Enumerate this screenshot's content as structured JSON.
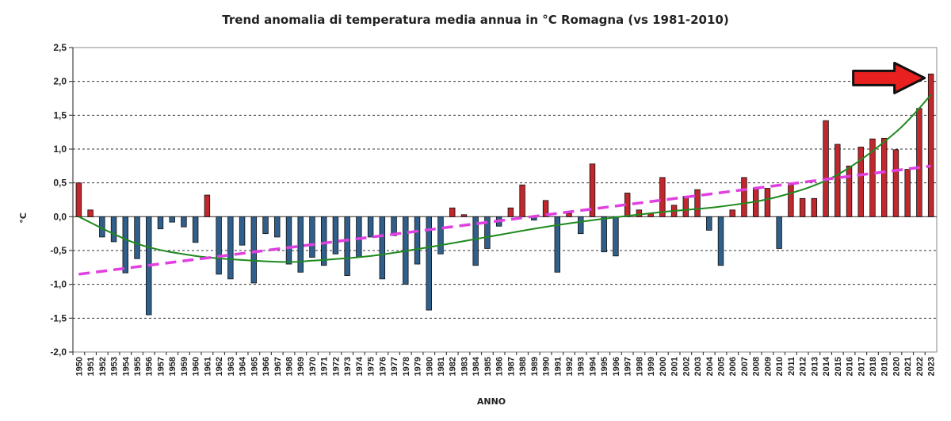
{
  "chart_data": {
    "type": "bar",
    "title": "Trend anomalia di temperatura media annua in °C Romagna (vs 1981-2010)",
    "xlabel": "ANNO",
    "ylabel": "°C",
    "ylim": [
      -2.0,
      2.5
    ],
    "yticks": [
      "2,5",
      "2,0",
      "1,5",
      "1,0",
      "0,5",
      "0,0",
      "-0,5",
      "-1,0",
      "-1,5",
      "-2,0"
    ],
    "grid": true,
    "legend": "none",
    "colors": {
      "positive": "#c0282d",
      "negative": "#2f5f8a",
      "linear_trend": "#e040e0",
      "poly_trend": "#1e8a1e",
      "arrow": "#e82020"
    },
    "categories": [
      "1950",
      "1951",
      "1952",
      "1953",
      "1954",
      "1955",
      "1956",
      "1957",
      "1958",
      "1959",
      "1960",
      "1961",
      "1962",
      "1963",
      "1964",
      "1965",
      "1966",
      "1967",
      "1968",
      "1969",
      "1970",
      "1971",
      "1972",
      "1973",
      "1974",
      "1975",
      "1976",
      "1977",
      "1978",
      "1979",
      "1980",
      "1981",
      "1982",
      "1983",
      "1984",
      "1985",
      "1986",
      "1987",
      "1988",
      "1989",
      "1990",
      "1991",
      "1992",
      "1993",
      "1994",
      "1995",
      "1996",
      "1997",
      "1998",
      "1999",
      "2000",
      "2001",
      "2002",
      "2003",
      "2004",
      "2005",
      "2006",
      "2007",
      "2008",
      "2009",
      "2010",
      "2011",
      "2012",
      "2013",
      "2014",
      "2015",
      "2016",
      "2017",
      "2018",
      "2019",
      "2020",
      "2021",
      "2022",
      "2023"
    ],
    "values": [
      0.5,
      0.1,
      -0.3,
      -0.37,
      -0.83,
      -0.62,
      -1.45,
      -0.18,
      -0.08,
      -0.15,
      -0.38,
      0.32,
      -0.85,
      -0.92,
      -0.42,
      -0.98,
      -0.25,
      -0.3,
      -0.7,
      -0.82,
      -0.6,
      -0.72,
      -0.55,
      -0.87,
      -0.6,
      -0.3,
      -0.92,
      -0.28,
      -1.0,
      -0.7,
      -1.38,
      -0.55,
      0.13,
      0.03,
      -0.72,
      -0.47,
      -0.14,
      0.13,
      0.47,
      -0.05,
      0.24,
      -0.82,
      0.05,
      -0.25,
      0.78,
      -0.52,
      -0.58,
      0.35,
      0.1,
      0.05,
      0.58,
      0.17,
      0.3,
      0.4,
      -0.2,
      -0.72,
      0.1,
      0.58,
      0.42,
      0.42,
      -0.47,
      0.47,
      0.27,
      0.27,
      1.42,
      1.07,
      0.75,
      1.03,
      1.15,
      1.16,
      0.99,
      0.7,
      1.6,
      2.11
    ],
    "linear_trend": {
      "start": -0.85,
      "end": 0.75
    },
    "poly_trend": {
      "x": [
        1950,
        1955,
        1960,
        1965,
        1968,
        1970,
        1975,
        1980,
        1985,
        1990,
        1995,
        2000,
        2005,
        2010,
        2015,
        2020,
        2023
      ],
      "y": [
        0.0,
        -0.4,
        -0.58,
        -0.65,
        -0.67,
        -0.65,
        -0.58,
        -0.45,
        -0.3,
        -0.15,
        -0.03,
        0.07,
        0.15,
        0.3,
        0.62,
        1.25,
        1.8
      ]
    }
  }
}
